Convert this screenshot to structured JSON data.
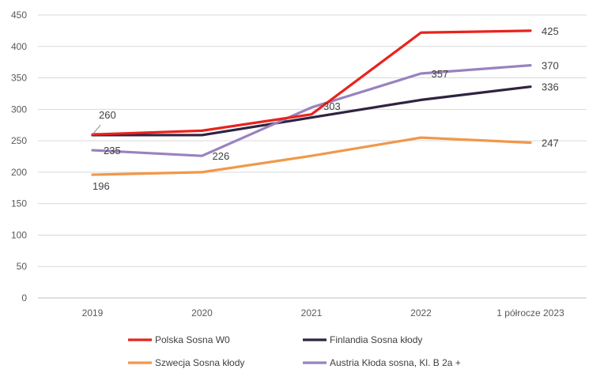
{
  "chart_data": {
    "type": "line",
    "title": "",
    "xlabel": "",
    "ylabel": "",
    "categories": [
      "2019",
      "2020",
      "2021",
      "2022",
      "1 półrocze 2023"
    ],
    "ylim": [
      0,
      450
    ],
    "yticks": [
      0,
      50,
      100,
      150,
      200,
      250,
      300,
      350,
      400,
      450
    ],
    "grid": true,
    "legend_position": "bottom",
    "series": [
      {
        "name": "Polska Sosna W0",
        "color": "#e8231c",
        "values": [
          260,
          266,
          292,
          422,
          425
        ]
      },
      {
        "name": "Finlandia Sosna kłody",
        "color": "#2f2341",
        "values": [
          259,
          259,
          287,
          315,
          336
        ]
      },
      {
        "name": "Szwecja Sosna kłody",
        "color": "#f0984a",
        "values": [
          196,
          200,
          226,
          255,
          247
        ]
      },
      {
        "name": "Austria Kłoda sosna, Kl. B 2a +",
        "color": "#9a82be",
        "values": [
          235,
          226,
          303,
          357,
          370
        ]
      }
    ],
    "data_labels": [
      {
        "text": "260",
        "series": 0,
        "index": 0
      },
      {
        "text": "235",
        "series": 3,
        "index": 0
      },
      {
        "text": "196",
        "series": 2,
        "index": 0
      },
      {
        "text": "226",
        "series": 3,
        "index": 1
      },
      {
        "text": "303",
        "series": 3,
        "index": 2
      },
      {
        "text": "357",
        "series": 3,
        "index": 3
      },
      {
        "text": "425",
        "series": 0,
        "index": 4
      },
      {
        "text": "370",
        "series": 3,
        "index": 4
      },
      {
        "text": "336",
        "series": 1,
        "index": 4
      },
      {
        "text": "247",
        "series": 2,
        "index": 4
      }
    ]
  }
}
